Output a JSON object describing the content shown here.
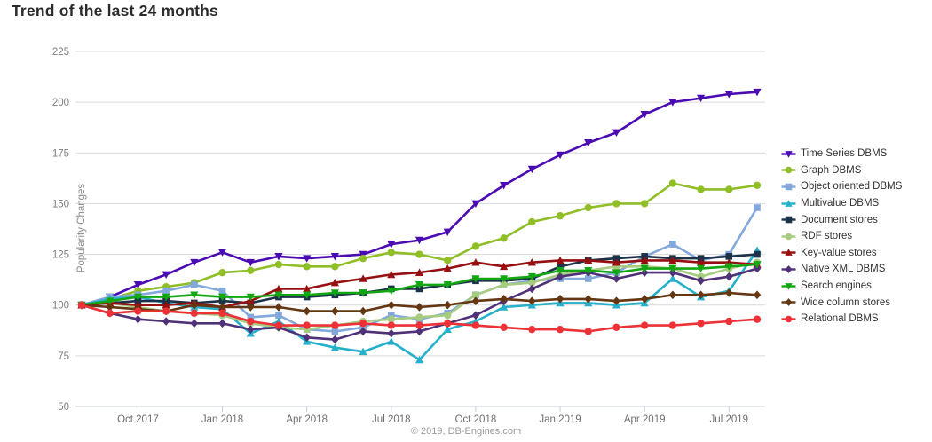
{
  "footer": {
    "credit": "© 2019, DB-Engines.com"
  },
  "chart_data": {
    "type": "line",
    "title": "Trend of the last 24 months",
    "ylabel": "Popularity Changes",
    "ylim": [
      50,
      225
    ],
    "yticks": [
      225,
      200,
      175,
      150,
      125,
      100,
      75,
      50
    ],
    "grid": "horizontal",
    "legend_position": "right",
    "x": [
      "Aug 2017",
      "Sep 2017",
      "Oct 2017",
      "Nov 2017",
      "Dec 2017",
      "Jan 2018",
      "Feb 2018",
      "Mar 2018",
      "Apr 2018",
      "May 2018",
      "Jun 2018",
      "Jul 2018",
      "Aug 2018",
      "Sep 2018",
      "Oct 2018",
      "Nov 2018",
      "Dec 2018",
      "Jan 2019",
      "Feb 2019",
      "Mar 2019",
      "Apr 2019",
      "May 2019",
      "Jun 2019",
      "Jul 2019",
      "Aug 2019"
    ],
    "x_axis_ticks": [
      {
        "index": 2,
        "label": "Oct 2017"
      },
      {
        "index": 5,
        "label": "Jan 2018"
      },
      {
        "index": 8,
        "label": "Apr 2018"
      },
      {
        "index": 11,
        "label": "Jul 2018"
      },
      {
        "index": 14,
        "label": "Oct 2018"
      },
      {
        "index": 17,
        "label": "Jan 2019"
      },
      {
        "index": 20,
        "label": "Apr 2019"
      },
      {
        "index": 23,
        "label": "Jul 2019"
      }
    ],
    "series": [
      {
        "name": "Time Series DBMS",
        "color": "#4a0bb3",
        "marker": "triangle-down",
        "values": [
          100,
          104,
          110,
          115,
          121,
          126,
          121,
          124,
          123,
          124,
          125,
          130,
          132,
          136,
          150,
          159,
          167,
          174,
          180,
          185,
          194,
          200,
          202,
          204,
          205
        ]
      },
      {
        "name": "Graph DBMS",
        "color": "#8fbe27",
        "marker": "circle",
        "values": [
          100,
          103,
          107,
          109,
          111,
          116,
          117,
          120,
          119,
          119,
          123,
          126,
          125,
          122,
          129,
          133,
          141,
          144,
          148,
          150,
          150,
          160,
          157,
          157,
          159
        ]
      },
      {
        "name": "Object oriented DBMS",
        "color": "#82a8dc",
        "marker": "square",
        "values": [
          100,
          104,
          105,
          107,
          110,
          107,
          94,
          95,
          88,
          87,
          89,
          95,
          93,
          96,
          105,
          110,
          112,
          113,
          113,
          116,
          124,
          130,
          122,
          125,
          148
        ]
      },
      {
        "name": "Multivalue DBMS",
        "color": "#25b0cc",
        "marker": "triangle-up",
        "values": [
          100,
          103,
          104,
          101,
          99,
          98,
          86,
          92,
          82,
          79,
          77,
          82,
          73,
          88,
          92,
          99,
          100,
          101,
          101,
          100,
          101,
          113,
          104,
          107,
          127
        ]
      },
      {
        "name": "Document stores",
        "color": "#1c3249",
        "marker": "square",
        "values": [
          100,
          101,
          102,
          102,
          101,
          102,
          101,
          104,
          104,
          105,
          106,
          108,
          108,
          110,
          112,
          112,
          113,
          119,
          122,
          123,
          124,
          123,
          123,
          124,
          125
        ]
      },
      {
        "name": "RDF stores",
        "color": "#a7cc80",
        "marker": "circle",
        "values": [
          100,
          101,
          99,
          97,
          96,
          95,
          91,
          89,
          88,
          90,
          92,
          93,
          94,
          95,
          105,
          110,
          111,
          115,
          117,
          119,
          119,
          118,
          114,
          118,
          121
        ]
      },
      {
        "name": "Key-value stores",
        "color": "#970f10",
        "marker": "triangle-up",
        "values": [
          100,
          101,
          100,
          100,
          101,
          99,
          102,
          108,
          108,
          111,
          113,
          115,
          116,
          118,
          121,
          119,
          121,
          122,
          122,
          121,
          122,
          122,
          121,
          121,
          120
        ]
      },
      {
        "name": "Native XML DBMS",
        "color": "#4f3178",
        "marker": "diamond",
        "values": [
          100,
          96,
          93,
          92,
          91,
          91,
          88,
          89,
          84,
          83,
          87,
          86,
          87,
          91,
          95,
          102,
          108,
          114,
          116,
          113,
          116,
          116,
          112,
          114,
          118
        ]
      },
      {
        "name": "Search engines",
        "color": "#12a712",
        "marker": "triangle-down",
        "values": [
          100,
          102,
          104,
          104,
          105,
          104,
          104,
          105,
          105,
          106,
          106,
          107,
          110,
          110,
          113,
          113,
          114,
          117,
          117,
          116,
          118,
          118,
          118,
          119,
          120
        ]
      },
      {
        "name": "Wide column stores",
        "color": "#643611",
        "marker": "diamond",
        "values": [
          100,
          99,
          98,
          97,
          100,
          99,
          99,
          99,
          97,
          97,
          97,
          100,
          99,
          100,
          102,
          103,
          102,
          103,
          103,
          102,
          103,
          105,
          105,
          106,
          105
        ]
      },
      {
        "name": "Relational DBMS",
        "color": "#ec3236",
        "marker": "circle",
        "values": [
          100,
          96,
          97,
          97,
          96,
          96,
          92,
          90,
          90,
          90,
          91,
          90,
          90,
          91,
          90,
          89,
          88,
          88,
          87,
          89,
          90,
          90,
          91,
          92,
          93
        ]
      }
    ],
    "axis_colors": {
      "grid": "#d9d9d9",
      "axis_line": "#c6ccd4",
      "tick_text": "#6e6e6e"
    }
  }
}
